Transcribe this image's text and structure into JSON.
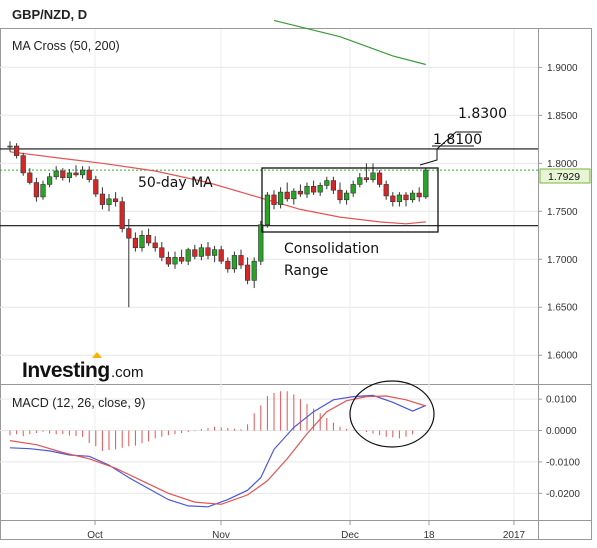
{
  "title": "GBP/NZD, D",
  "chart_data": [
    {
      "type": "candlestick",
      "pane": "price",
      "label": "MA Cross (50, 200)",
      "x_ticks": [
        "Oct",
        "Nov",
        "Dec",
        "18",
        "2017"
      ],
      "y_ticks": [
        "1.9000",
        "1.8500",
        "1.8000",
        "1.7500",
        "1.7000",
        "1.6500",
        "1.6000"
      ],
      "ylim": [
        1.57,
        1.94
      ],
      "current_price": "1.7929",
      "annotations": [
        "50-day MA",
        "Consolidation",
        "Range",
        "1.8100",
        "1.8300"
      ],
      "levels": {
        "resistance": 1.815,
        "support": 1.735,
        "current": 1.7929
      },
      "colors": {
        "up": "#27a327",
        "down": "#d62728",
        "ma50": "#e05555",
        "ma200": "#3a9a3a",
        "price_line": "#33aa33"
      },
      "candles": [
        [
          1.817,
          1.823,
          1.812,
          1.818
        ],
        [
          1.818,
          1.821,
          1.805,
          1.808
        ],
        [
          1.808,
          1.811,
          1.787,
          1.79
        ],
        [
          1.79,
          1.795,
          1.778,
          1.78
        ],
        [
          1.78,
          1.785,
          1.76,
          1.765
        ],
        [
          1.765,
          1.782,
          1.762,
          1.778
        ],
        [
          1.778,
          1.79,
          1.775,
          1.786
        ],
        [
          1.786,
          1.797,
          1.783,
          1.792
        ],
        [
          1.792,
          1.795,
          1.782,
          1.785
        ],
        [
          1.785,
          1.794,
          1.78,
          1.79
        ],
        [
          1.79,
          1.798,
          1.786,
          1.788
        ],
        [
          1.788,
          1.797,
          1.784,
          1.793
        ],
        [
          1.793,
          1.797,
          1.78,
          1.783
        ],
        [
          1.783,
          1.787,
          1.765,
          1.768
        ],
        [
          1.768,
          1.775,
          1.752,
          1.757
        ],
        [
          1.757,
          1.768,
          1.75,
          1.763
        ],
        [
          1.763,
          1.77,
          1.755,
          1.76
        ],
        [
          1.76,
          1.765,
          1.728,
          1.732
        ],
        [
          1.732,
          1.742,
          1.65,
          1.722
        ],
        [
          1.722,
          1.728,
          1.708,
          1.712
        ],
        [
          1.712,
          1.73,
          1.708,
          1.725
        ],
        [
          1.725,
          1.732,
          1.714,
          1.717
        ],
        [
          1.717,
          1.724,
          1.708,
          1.712
        ],
        [
          1.712,
          1.718,
          1.698,
          1.702
        ],
        [
          1.702,
          1.708,
          1.692,
          1.695
        ],
        [
          1.695,
          1.708,
          1.69,
          1.702
        ],
        [
          1.702,
          1.71,
          1.695,
          1.698
        ],
        [
          1.698,
          1.712,
          1.694,
          1.71
        ],
        [
          1.71,
          1.715,
          1.7,
          1.703
        ],
        [
          1.703,
          1.716,
          1.699,
          1.712
        ],
        [
          1.712,
          1.718,
          1.7,
          1.704
        ],
        [
          1.704,
          1.714,
          1.697,
          1.71
        ],
        [
          1.71,
          1.714,
          1.695,
          1.698
        ],
        [
          1.698,
          1.702,
          1.686,
          1.69
        ],
        [
          1.69,
          1.708,
          1.686,
          1.704
        ],
        [
          1.704,
          1.71,
          1.69,
          1.694
        ],
        [
          1.694,
          1.702,
          1.674,
          1.678
        ],
        [
          1.678,
          1.702,
          1.67,
          1.698
        ],
        [
          1.698,
          1.74,
          1.694,
          1.736
        ],
        [
          1.736,
          1.77,
          1.733,
          1.767
        ],
        [
          1.767,
          1.772,
          1.752,
          1.757
        ],
        [
          1.757,
          1.775,
          1.753,
          1.77
        ],
        [
          1.77,
          1.78,
          1.76,
          1.763
        ],
        [
          1.763,
          1.774,
          1.757,
          1.771
        ],
        [
          1.771,
          1.778,
          1.765,
          1.768
        ],
        [
          1.768,
          1.78,
          1.764,
          1.776
        ],
        [
          1.776,
          1.782,
          1.767,
          1.77
        ],
        [
          1.77,
          1.78,
          1.766,
          1.777
        ],
        [
          1.777,
          1.786,
          1.773,
          1.782
        ],
        [
          1.782,
          1.786,
          1.768,
          1.772
        ],
        [
          1.772,
          1.78,
          1.758,
          1.762
        ],
        [
          1.762,
          1.772,
          1.757,
          1.769
        ],
        [
          1.769,
          1.782,
          1.765,
          1.778
        ],
        [
          1.778,
          1.79,
          1.775,
          1.785
        ],
        [
          1.785,
          1.8,
          1.78,
          1.783
        ],
        [
          1.783,
          1.8,
          1.78,
          1.79
        ],
        [
          1.79,
          1.793,
          1.775,
          1.778
        ],
        [
          1.778,
          1.782,
          1.762,
          1.766
        ],
        [
          1.766,
          1.77,
          1.755,
          1.76
        ],
        [
          1.76,
          1.77,
          1.755,
          1.767
        ],
        [
          1.767,
          1.77,
          1.755,
          1.762
        ],
        [
          1.762,
          1.772,
          1.759,
          1.769
        ],
        [
          1.769,
          1.775,
          1.76,
          1.765
        ],
        [
          1.765,
          1.795,
          1.763,
          1.793
        ]
      ],
      "ma50": [
        [
          0,
          1.812
        ],
        [
          8,
          1.805
        ],
        [
          14,
          1.8
        ],
        [
          22,
          1.792
        ],
        [
          30,
          1.78
        ],
        [
          38,
          1.764
        ],
        [
          44,
          1.752
        ],
        [
          50,
          1.744
        ],
        [
          56,
          1.739
        ],
        [
          60,
          1.737
        ],
        [
          63,
          1.739
        ]
      ],
      "ma200": [
        [
          40,
          1.949
        ],
        [
          50,
          1.932
        ],
        [
          58,
          1.912
        ],
        [
          63,
          1.903
        ]
      ]
    },
    {
      "type": "macd",
      "pane": "indicator",
      "label": "MACD (12, 26, close, 9)",
      "y_ticks": [
        "0.0100",
        "0.0000",
        "-0.0100",
        "-0.0200"
      ],
      "ylim": [
        -0.0285,
        0.0145
      ],
      "colors": {
        "macd": "#4b57d6",
        "signal": "#e05555",
        "histogram": "#e05555"
      },
      "macd": [
        [
          0,
          -0.0055
        ],
        [
          3,
          -0.0058
        ],
        [
          6,
          -0.0065
        ],
        [
          9,
          -0.0078
        ],
        [
          12,
          -0.0082
        ],
        [
          15,
          -0.011
        ],
        [
          18,
          -0.015
        ],
        [
          21,
          -0.0185
        ],
        [
          24,
          -0.022
        ],
        [
          27,
          -0.024
        ],
        [
          30,
          -0.0243
        ],
        [
          33,
          -0.022
        ],
        [
          36,
          -0.019
        ],
        [
          38,
          -0.015
        ],
        [
          40,
          -0.006
        ],
        [
          43,
          0.001
        ],
        [
          46,
          0.006
        ],
        [
          49,
          0.0098
        ],
        [
          52,
          0.0108
        ],
        [
          55,
          0.0112
        ],
        [
          58,
          0.009
        ],
        [
          61,
          0.0062
        ],
        [
          63,
          0.008
        ]
      ],
      "signal": [
        [
          0,
          -0.0032
        ],
        [
          4,
          -0.0045
        ],
        [
          8,
          -0.007
        ],
        [
          12,
          -0.009
        ],
        [
          16,
          -0.012
        ],
        [
          20,
          -0.016
        ],
        [
          24,
          -0.02
        ],
        [
          28,
          -0.0228
        ],
        [
          32,
          -0.0235
        ],
        [
          36,
          -0.0205
        ],
        [
          39,
          -0.016
        ],
        [
          42,
          -0.009
        ],
        [
          45,
          -0.001
        ],
        [
          48,
          0.006
        ],
        [
          51,
          0.0095
        ],
        [
          54,
          0.0108
        ],
        [
          57,
          0.011
        ],
        [
          60,
          0.0098
        ],
        [
          63,
          0.0078
        ]
      ],
      "histogram": [
        -0.0015,
        -0.0012,
        -0.0018,
        -0.0012,
        -0.0008,
        -0.0004,
        -0.001,
        -0.0012,
        -0.0011,
        -0.0016,
        -0.0018,
        -0.002,
        -0.004,
        -0.005,
        -0.0065,
        -0.0062,
        -0.006,
        -0.0055,
        -0.005,
        -0.0048,
        -0.004,
        -0.0035,
        -0.0025,
        -0.002,
        -0.0015,
        -0.0012,
        -0.0008,
        -0.0005,
        -0.0002,
        0.0005,
        0.0008,
        0.0012,
        0.001,
        0.0008,
        0.0006,
        0.0004,
        0.002,
        0.0055,
        0.008,
        0.011,
        0.012,
        0.0125,
        0.0125,
        0.0115,
        0.01,
        0.0085,
        0.007,
        0.0055,
        0.004,
        0.0025,
        0.0012,
        0.0005,
        0.0002,
        0.0001,
        -0.0005,
        -0.001,
        -0.0015,
        -0.002,
        -0.0022,
        -0.0025,
        -0.002,
        -0.0012,
        0.0,
        0.0002
      ]
    }
  ]
}
